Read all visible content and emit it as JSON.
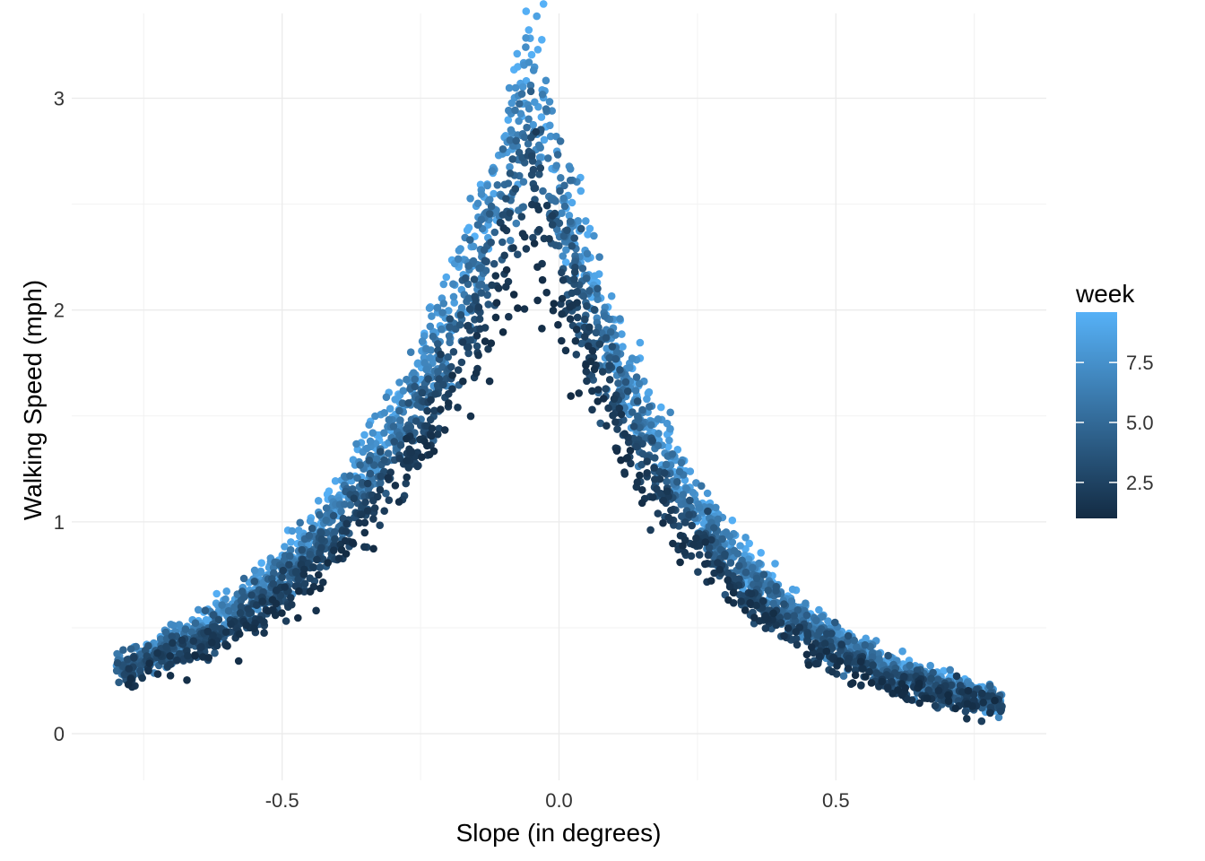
{
  "chart_data": {
    "type": "scatter",
    "title": "",
    "xlabel": "Slope (in degrees)",
    "ylabel": "Walking Speed (mph)",
    "xlim": [
      -0.88,
      0.88
    ],
    "ylim": [
      -0.22,
      3.4
    ],
    "x_ticks": [
      -0.5,
      0.0,
      0.5
    ],
    "x_tick_labels": [
      "-0.5",
      "0.0",
      "0.5"
    ],
    "y_ticks": [
      0,
      1,
      2,
      3
    ],
    "y_tick_labels": [
      "0",
      "1",
      "2",
      "3"
    ],
    "grid": true,
    "legend": {
      "title": "week",
      "placement": "right",
      "scale": "continuous",
      "range": [
        1,
        9.6
      ],
      "breaks": [
        2.5,
        5.0,
        7.5
      ],
      "break_labels": [
        "2.5",
        "5.0",
        "7.5"
      ],
      "color_low": "#132B43",
      "color_high": "#56B1F7"
    },
    "trend": {
      "description": "Speed peaks near slope -0.05 and decays exponentially on both sides; later weeks are faster",
      "peak_x": -0.05,
      "peak_y": 3.3,
      "x_range": [
        -0.8,
        0.8
      ]
    },
    "series": [
      {
        "x": [
          -0.8,
          -0.7,
          -0.6,
          -0.5,
          -0.4,
          -0.3,
          -0.2,
          -0.1,
          -0.05,
          0.0,
          0.1,
          0.2,
          0.3,
          0.4,
          0.5,
          0.6,
          0.7,
          0.8
        ],
        "y_week1": [
          0.1,
          0.15,
          0.25,
          0.35,
          0.55,
          0.85,
          1.25,
          1.9,
          2.2,
          1.9,
          1.3,
          0.9,
          0.6,
          0.4,
          0.25,
          0.17,
          0.1,
          0.08
        ],
        "y_week9": [
          0.2,
          0.3,
          0.45,
          0.65,
          1.0,
          1.55,
          2.2,
          2.9,
          3.3,
          2.75,
          2.05,
          1.4,
          0.95,
          0.65,
          0.45,
          0.3,
          0.2,
          0.15
        ]
      }
    ]
  }
}
